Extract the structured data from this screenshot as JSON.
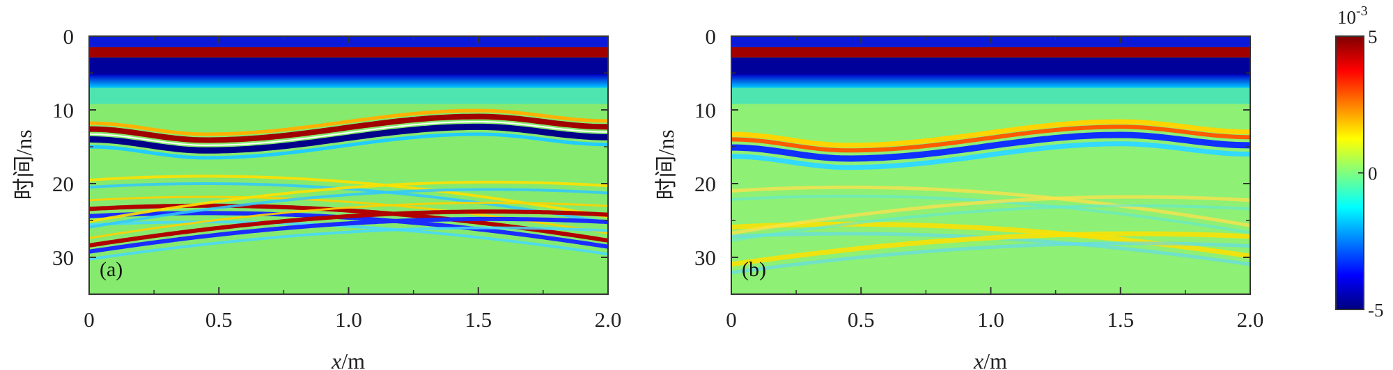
{
  "chart_data": [
    {
      "type": "heatmap",
      "panel_label": "(a)",
      "xlabel_var": "x",
      "xlabel_unit": "/m",
      "ylabel": "时间/ns",
      "xlim": [
        0,
        2.0
      ],
      "ylim": [
        0,
        35
      ],
      "x_ticks": [
        "0",
        "0.5",
        "1.0",
        "1.5",
        "2.0"
      ],
      "y_ticks": [
        "0",
        "10",
        "20",
        "30"
      ],
      "colormap": "jet",
      "features": [
        {
          "name": "direct wave",
          "time_ns": [
            1.5,
            2.7,
            5
          ]
        },
        {
          "name": "interface reflection",
          "time_ns_at_x0": 13,
          "time_ns_at_x0.45": 14.5,
          "time_ns_at_x1.5": 11.3,
          "time_ns_at_x2": 12.7
        },
        {
          "name": "hyperbola left",
          "apex_x_m": 0.45,
          "apex_time_ns": 23
        },
        {
          "name": "hyperbola right",
          "apex_x_m": 1.55,
          "apex_time_ns": 23.8
        }
      ]
    },
    {
      "type": "heatmap",
      "panel_label": "(b)",
      "xlabel_var": "x",
      "xlabel_unit": "/m",
      "ylabel": "时间/ns",
      "xlim": [
        0,
        2.0
      ],
      "ylim": [
        0,
        35
      ],
      "x_ticks": [
        "0",
        "0.5",
        "1.0",
        "1.5",
        "2.0"
      ],
      "y_ticks": [
        "0",
        "10",
        "20",
        "30"
      ],
      "colormap": "jet",
      "features": [
        {
          "name": "direct wave",
          "time_ns": [
            1.5,
            2.7,
            5
          ]
        },
        {
          "name": "interface reflection",
          "time_ns_at_x0": 14,
          "time_ns_at_x0.45": 15.5,
          "time_ns_at_x1.5": 12.3,
          "time_ns_at_x2": 13.7
        },
        {
          "name": "hyperbola left",
          "apex_x_m": 0.45,
          "apex_time_ns": 25.5
        },
        {
          "name": "hyperbola right",
          "apex_x_m": 1.55,
          "apex_time_ns": 26.8
        }
      ]
    }
  ],
  "colorbar": {
    "min": -5,
    "max": 5,
    "ticks": [
      "5",
      "0",
      "-5"
    ],
    "exponent_base": "10",
    "exponent": "-3",
    "colors": [
      "#00007f",
      "#0000ff",
      "#0080ff",
      "#00ffff",
      "#80ff80",
      "#ffff00",
      "#ff8000",
      "#ff0000",
      "#7f0000"
    ]
  }
}
